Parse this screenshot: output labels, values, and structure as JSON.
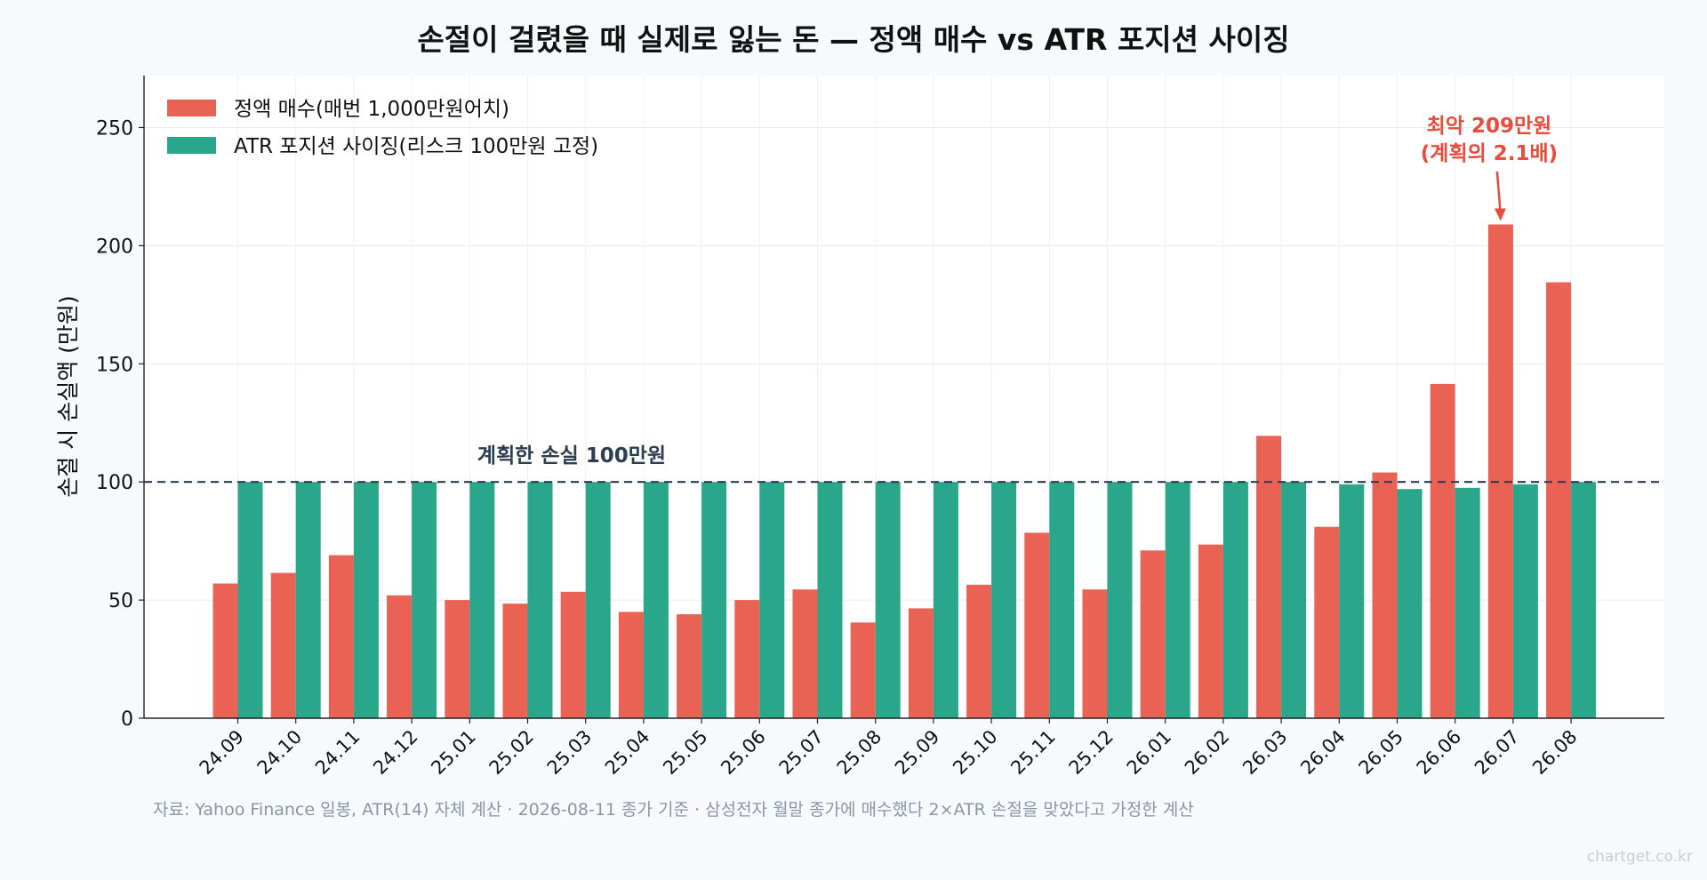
{
  "chart_data": {
    "type": "bar",
    "title": "손절이 걸렸을 때 실제로 잃는 돈 — 정액 매수 vs ATR 포지션 사이징",
    "ylabel": "손절 시 손실액 (만원)",
    "xlabel": "",
    "ylim": [
      0,
      272
    ],
    "yticks": [
      0,
      50,
      100,
      150,
      200,
      250
    ],
    "grid": true,
    "legend_position": "top-left",
    "categories": [
      "24.09",
      "24.10",
      "24.11",
      "24.12",
      "25.01",
      "25.02",
      "25.03",
      "25.04",
      "25.05",
      "25.06",
      "25.07",
      "25.08",
      "25.09",
      "25.10",
      "25.11",
      "25.12",
      "26.01",
      "26.02",
      "26.03",
      "26.04",
      "26.05",
      "26.06",
      "26.07",
      "26.08"
    ],
    "series": [
      {
        "name": "정액 매수(매번 1,000만원어치)",
        "color": "#e96253",
        "values": [
          57,
          61.5,
          69,
          52,
          50,
          48.5,
          53.5,
          45,
          44,
          50,
          54.5,
          40.5,
          46.5,
          56.5,
          78.5,
          54.5,
          71,
          73.5,
          119.5,
          81,
          104,
          141.5,
          209,
          184.5
        ]
      },
      {
        "name": "ATR 포지션 사이징(리스크 100만원 고정)",
        "color": "#2aa78a",
        "values": [
          100,
          100,
          100,
          100,
          100,
          100,
          100,
          100,
          100,
          100,
          100,
          100,
          100,
          100,
          100,
          100,
          100,
          100,
          100,
          99,
          97,
          97.5,
          99,
          100
        ]
      }
    ],
    "reference_line": {
      "value": 100,
      "label": "계획한 손실 100만원",
      "color": "#2c3e50"
    },
    "annotation": {
      "line1": "최악 209만원",
      "line2": "(계획의 2.1배)",
      "category": "26.07",
      "value": 209,
      "color": "#e74c3c"
    },
    "source": "자료: Yahoo Finance 일봉, ATR(14) 자체 계산 · 2026-08-11 종가 기준 · 삼성전자 월말 종가에 매수했다 2×ATR 손절을 맞았다고 가정한 계산",
    "watermark": "chartget.co.kr"
  }
}
